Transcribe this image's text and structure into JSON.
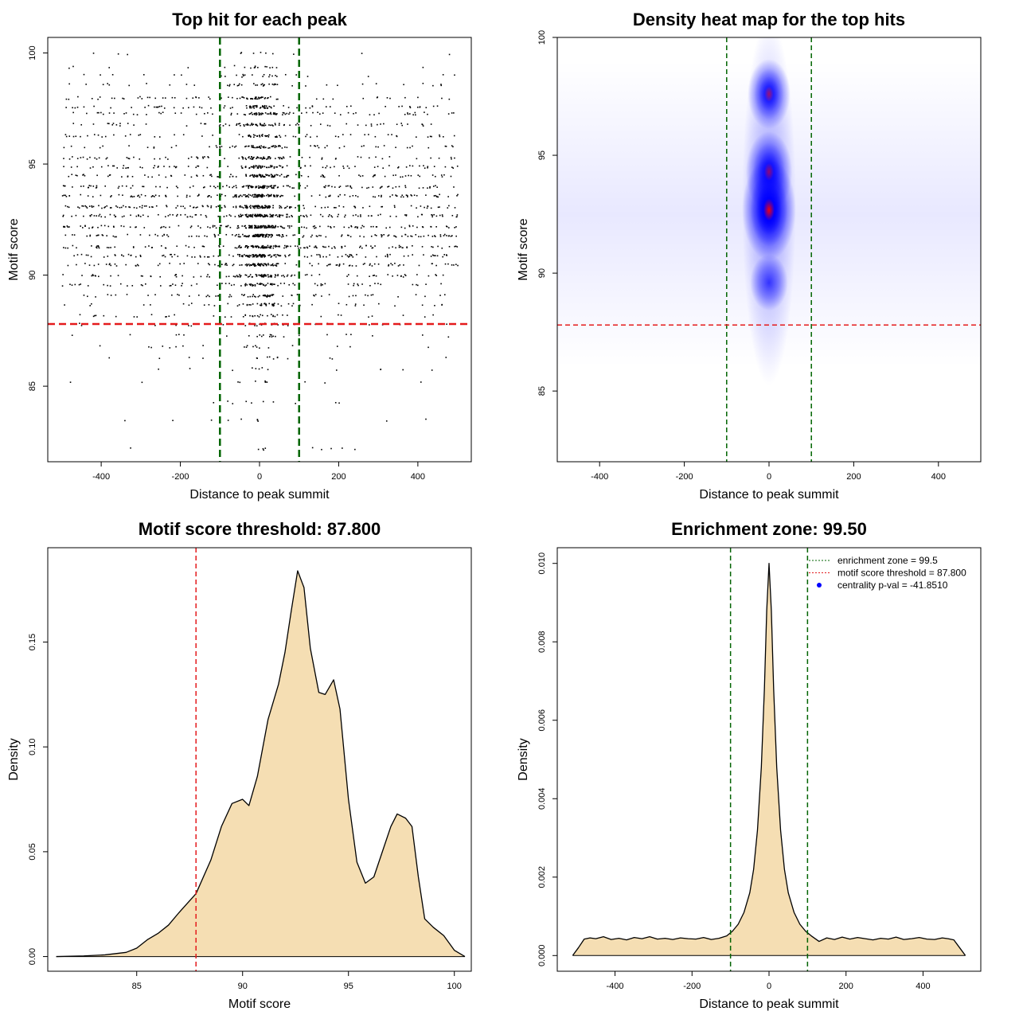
{
  "colors": {
    "threshold": "#e41a1c",
    "zone": "#006400",
    "fill": "#f5deb3",
    "heat_low": "#ffffff",
    "heat_mid": "#0000ff",
    "heat_high": "#ff0000",
    "points": "#000000"
  },
  "chart_data": [
    {
      "type": "scatter",
      "title": "Top hit for each peak",
      "xlabel": "Distance to peak summit",
      "ylabel": "Motif score",
      "xlim": [
        -535,
        535
      ],
      "ylim": [
        81.6,
        100.7
      ],
      "xticks": [
        -400,
        -200,
        0,
        200,
        400
      ],
      "yticks": [
        85,
        90,
        95,
        100
      ],
      "threshold_y": 87.8,
      "zone_x": [
        -100,
        100
      ],
      "point_density": {
        "score_levels": [
          82.2,
          83.5,
          84.3,
          85.2,
          85.8,
          86.3,
          86.8,
          87.3,
          87.8,
          88.2,
          88.7,
          89.1,
          89.6,
          90.0,
          90.5,
          90.9,
          91.3,
          91.8,
          92.2,
          92.7,
          93.1,
          93.6,
          94.0,
          94.5,
          94.9,
          95.3,
          95.8,
          96.3,
          96.8,
          97.3,
          97.6,
          98.0,
          98.6,
          99.0,
          99.4,
          100.0
        ],
        "center_sd": 30,
        "note": "points stacked along discrete score levels; dense near summit (x=0), sparse uniform background across ±500"
      }
    },
    {
      "type": "heatmap",
      "title": "Density heat map for the top hits",
      "xlabel": "Distance to peak summit",
      "ylabel": "Motif score",
      "xlim": [
        -500,
        500
      ],
      "ylim": [
        82,
        100
      ],
      "xticks": [
        -400,
        -200,
        0,
        200,
        400
      ],
      "yticks": [
        85,
        90,
        95,
        100
      ],
      "threshold_y": 87.8,
      "zone_x": [
        -100,
        100
      ],
      "hotspots": [
        {
          "x": 0,
          "y": 92.7,
          "weight": 1.0
        },
        {
          "x": 0,
          "y": 94.3,
          "weight": 0.7
        },
        {
          "x": 0,
          "y": 97.6,
          "weight": 0.55
        },
        {
          "x": 0,
          "y": 89.6,
          "weight": 0.35
        }
      ]
    },
    {
      "type": "area",
      "title": "Motif score threshold: 87.800",
      "xlabel": "Motif score",
      "ylabel": "Density",
      "xlim": [
        80.8,
        100.8
      ],
      "ylim": [
        -0.007,
        0.195
      ],
      "xticks": [
        85,
        90,
        95,
        100
      ],
      "yticks": [
        0.0,
        0.05,
        0.1,
        0.15
      ],
      "ytick_labels": [
        "0.00",
        "0.05",
        "0.10",
        "0.15"
      ],
      "threshold_x": 87.8,
      "x": [
        81.2,
        82.5,
        83.5,
        84.5,
        85.0,
        85.5,
        86.0,
        86.5,
        87.0,
        87.8,
        88.5,
        89.0,
        89.5,
        90.0,
        90.3,
        90.7,
        91.2,
        91.7,
        92.0,
        92.3,
        92.6,
        92.9,
        93.2,
        93.6,
        93.9,
        94.3,
        94.6,
        95.0,
        95.4,
        95.8,
        96.2,
        96.6,
        97.0,
        97.3,
        97.7,
        98.0,
        98.3,
        98.6,
        99.0,
        99.5,
        100.0,
        100.5
      ],
      "y": [
        0.0,
        0.0003,
        0.0008,
        0.002,
        0.004,
        0.008,
        0.011,
        0.015,
        0.021,
        0.03,
        0.046,
        0.062,
        0.073,
        0.075,
        0.072,
        0.086,
        0.113,
        0.13,
        0.145,
        0.165,
        0.184,
        0.176,
        0.147,
        0.126,
        0.125,
        0.132,
        0.118,
        0.075,
        0.045,
        0.035,
        0.038,
        0.05,
        0.062,
        0.068,
        0.066,
        0.062,
        0.038,
        0.018,
        0.014,
        0.01,
        0.003,
        0.0
      ]
    },
    {
      "type": "area",
      "title": "Enrichment zone: 99.50",
      "xlabel": "Distance to peak summit",
      "ylabel": "Density",
      "xlim": [
        -550,
        550
      ],
      "ylim": [
        -0.0004,
        0.0104
      ],
      "xticks": [
        -400,
        -200,
        0,
        200,
        400
      ],
      "yticks": [
        0.0,
        0.002,
        0.004,
        0.006,
        0.008,
        0.01
      ],
      "ytick_labels": [
        "0.000",
        "0.002",
        "0.004",
        "0.006",
        "0.008",
        "0.010"
      ],
      "zone_x": [
        -100,
        100
      ],
      "x": [
        -510,
        -495,
        -480,
        -465,
        -450,
        -430,
        -410,
        -390,
        -370,
        -350,
        -330,
        -310,
        -290,
        -270,
        -250,
        -230,
        -210,
        -190,
        -170,
        -150,
        -130,
        -110,
        -95,
        -80,
        -65,
        -50,
        -40,
        -30,
        -20,
        -12,
        -6,
        0,
        6,
        12,
        20,
        30,
        40,
        50,
        65,
        80,
        95,
        110,
        130,
        150,
        170,
        190,
        210,
        230,
        250,
        270,
        290,
        310,
        330,
        350,
        370,
        390,
        410,
        430,
        450,
        465,
        480,
        495,
        510
      ],
      "y": [
        0.0,
        0.0002,
        0.00042,
        0.00045,
        0.00043,
        0.00048,
        0.00041,
        0.00044,
        0.0004,
        0.00046,
        0.00043,
        0.00048,
        0.00042,
        0.00044,
        0.00041,
        0.00045,
        0.00043,
        0.00042,
        0.00046,
        0.00041,
        0.00044,
        0.0005,
        0.00062,
        0.0008,
        0.0011,
        0.0016,
        0.0022,
        0.0032,
        0.0048,
        0.0068,
        0.0088,
        0.01,
        0.0088,
        0.0068,
        0.0048,
        0.0032,
        0.0022,
        0.0016,
        0.0011,
        0.0008,
        0.00062,
        0.0005,
        0.00036,
        0.00045,
        0.00041,
        0.00047,
        0.00042,
        0.00046,
        0.00043,
        0.0004,
        0.00044,
        0.00042,
        0.00047,
        0.00041,
        0.00043,
        0.00046,
        0.00042,
        0.00041,
        0.00045,
        0.00043,
        0.0004,
        0.0002,
        0.0
      ],
      "legend": [
        {
          "label": "enrichment zone = 99.5",
          "style": "dotted",
          "color": "#006400"
        },
        {
          "label": "motif score threshold = 87.800",
          "style": "dotted",
          "color": "#e41a1c"
        },
        {
          "label": "centrality p-val = -41.8510",
          "style": "point",
          "color": "#0000ff"
        }
      ]
    }
  ]
}
